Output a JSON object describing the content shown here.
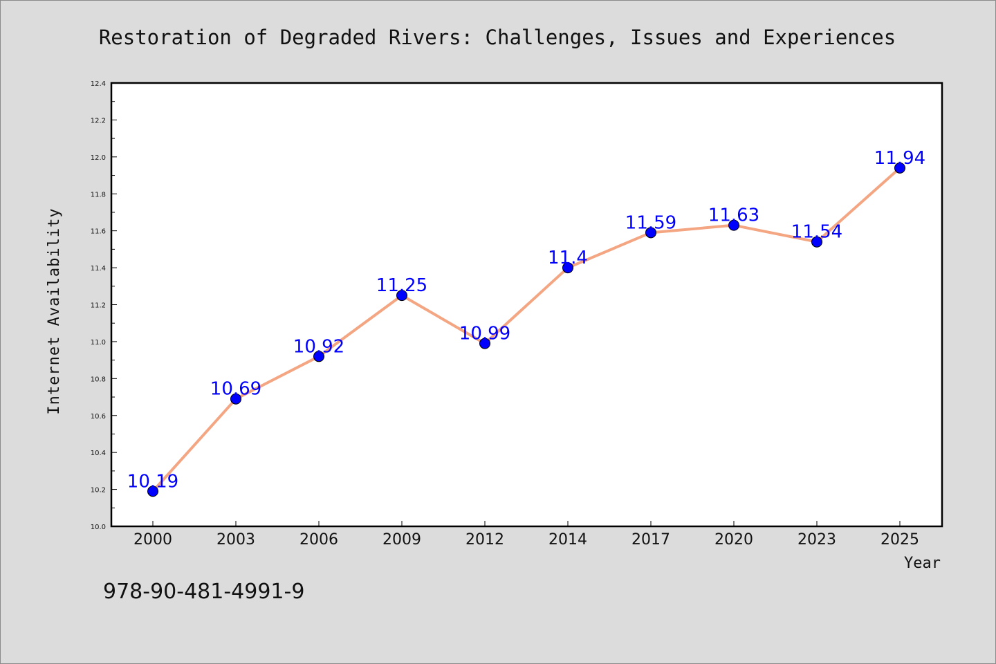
{
  "chart_data": {
    "type": "line",
    "title": "Restoration of Degraded Rivers: Challenges, Issues and Experiences",
    "xlabel": "Year",
    "ylabel": "Internet Availability",
    "categories": [
      "2000",
      "2003",
      "2006",
      "2009",
      "2012",
      "2014",
      "2017",
      "2020",
      "2023",
      "2025"
    ],
    "series": [
      {
        "values": [
          10.19,
          10.69,
          10.92,
          11.25,
          10.99,
          11.4,
          11.59,
          11.63,
          11.54,
          11.94
        ],
        "line_color": "#f4a582",
        "marker_color": "#0000ff",
        "label_color": "#0000ff"
      }
    ],
    "ylim": [
      10.0,
      12.4
    ],
    "yticks": [
      "10.0",
      "10.2",
      "10.4",
      "10.6",
      "10.8",
      "11.0",
      "11.2",
      "11.4",
      "11.6",
      "11.8",
      "12.0",
      "12.2",
      "12.4"
    ],
    "grid": false,
    "legend": "none"
  },
  "footer": {
    "isbn": "978-90-481-4991-9"
  }
}
